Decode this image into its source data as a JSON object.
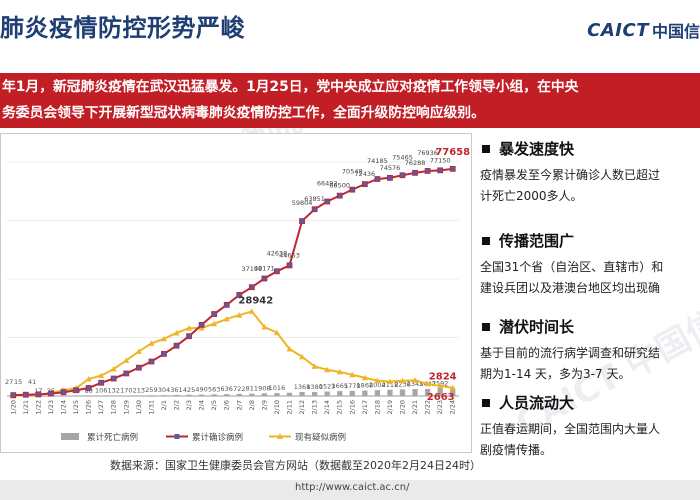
{
  "slide": {
    "title": "肺炎疫情防控形势严峻",
    "logo_text": "CAICT",
    "logo_cn": "中国信",
    "watermark": "CAICT 中国信通院"
  },
  "banner": {
    "line1": "年1月，新冠肺炎疫情在武汉迅猛暴发。1月25日，党中央成立应对疫情工作领导小组，在中央",
    "line2": "务委员会领导下开展新型冠状病毒肺炎疫情防控工作，全面升级防控响应级别。"
  },
  "chart_data": {
    "type": "bar",
    "categories": [
      "1/20",
      "1/21",
      "1/22",
      "1/23",
      "1/24",
      "1/25",
      "1/26",
      "1/27",
      "1/28",
      "1/29",
      "1/30",
      "1/31",
      "2/1",
      "2/2",
      "2/3",
      "2/4",
      "2/5",
      "2/6",
      "2/7",
      "2/8",
      "2/9",
      "2/10",
      "2/11",
      "2/12",
      "2/13",
      "2/14",
      "2/15",
      "2/16",
      "2/17",
      "2/18",
      "2/19",
      "2/20",
      "2/21",
      "2/22",
      "2/23",
      "2/24"
    ],
    "ylim": [
      0,
      80000
    ],
    "series": [
      {
        "name": "累计死亡病例",
        "kind": "bar",
        "color": "#a6a6a6",
        "values": [
          6,
          9,
          17,
          25,
          41,
          56,
          80,
          106,
          132,
          170,
          213,
          259,
          304,
          361,
          425,
          490,
          563,
          636,
          722,
          811,
          908,
          1016,
          1113,
          1368,
          1380,
          1523,
          1665,
          1770,
          1868,
          2004,
          2118,
          2236,
          2345,
          2442,
          2592,
          2663
        ],
        "labels": [
          "",
          "",
          "17",
          "25",
          "41",
          "56",
          "80",
          "106",
          "132",
          "170",
          "213",
          "259",
          "304",
          "361",
          "425",
          "490",
          "563",
          "636",
          "722",
          "811",
          "908",
          "1016",
          "",
          "1368",
          "1380",
          "1523",
          "1665",
          "1770",
          "1868",
          "2004",
          "2118",
          "2236",
          "2345",
          "2442",
          "2592",
          ""
        ]
      },
      {
        "name": "累计确诊病例",
        "kind": "line",
        "color": "#c0262e",
        "values": [
          291,
          440,
          571,
          830,
          1287,
          1975,
          2744,
          4515,
          5974,
          7711,
          9692,
          11791,
          14380,
          17205,
          20438,
          24324,
          28018,
          31161,
          34546,
          37198,
          40171,
          42638,
          44653,
          59804,
          63851,
          66492,
          68500,
          70548,
          72436,
          74185,
          74576,
          75465,
          76288,
          76936,
          77150,
          77658
        ],
        "labels": [
          "",
          "",
          "",
          "",
          "",
          "",
          "",
          "",
          "",
          "",
          "",
          "",
          "",
          "",
          "",
          "",
          "",
          "",
          "",
          "37198",
          "40171",
          "42638",
          "44653",
          "59804",
          "63851",
          "66492",
          "68500",
          "70548",
          "72436",
          "74185",
          "74576",
          "75465",
          "76288",
          "76936",
          "77150",
          "77658"
        ]
      },
      {
        "name": "现有疑似病例",
        "kind": "line",
        "color": "#f0b428",
        "values": [
          54,
          393,
          393,
          1072,
          1965,
          2684,
          5794,
          6973,
          9239,
          12167,
          15238,
          17988,
          19544,
          21558,
          23214,
          23260,
          24702,
          26359,
          27657,
          28942,
          23589,
          21675,
          16067,
          13435,
          10109,
          8969,
          8228,
          7264,
          6242,
          5248,
          4922,
          5206,
          5365,
          4148,
          3434,
          2824
        ],
        "labels": [
          "",
          "",
          "",
          "",
          "",
          "",
          "",
          "",
          "",
          "",
          "",
          "",
          "",
          "",
          "",
          "",
          "",
          "",
          "",
          "28942",
          "",
          "",
          "",
          "",
          "",
          "",
          "",
          "",
          "",
          "",
          "",
          "",
          "",
          "",
          "",
          "2824"
        ]
      }
    ],
    "bar_labels_extra": [],
    "left_axis_partial_labels": [
      "27",
      "15",
      "41"
    ],
    "highlight_labels": {
      "confirmed_last": "77658",
      "deaths_last": "2663",
      "suspected_peak": "28942",
      "suspected_last": "2824"
    },
    "legend_position": "bottom"
  },
  "right_panel": {
    "sections": [
      {
        "title": "暴发速度快",
        "lines": [
          "疫情暴发至今累计确诊人数已超过",
          "计死亡2000多人。"
        ]
      },
      {
        "title": "传播范围广",
        "lines": [
          "全国31个省（自治区、直辖市）和",
          "建设兵团以及港澳台地区均出现确"
        ]
      },
      {
        "title": "潜伏时间长",
        "lines": [
          "基于目前的流行病学调查和研究结",
          "期为1-14 天，多为3-7 天。"
        ]
      },
      {
        "title": "人员流动大",
        "lines": [
          "正值春运期间，全国范围内大量人",
          "剧疫情传播。"
        ]
      }
    ]
  },
  "source_note": "数据来源：国家卫生健康委员会官方网站（数据截至2020年2月24日24时）",
  "footer_url": "http://www.caict.ac.cn/"
}
